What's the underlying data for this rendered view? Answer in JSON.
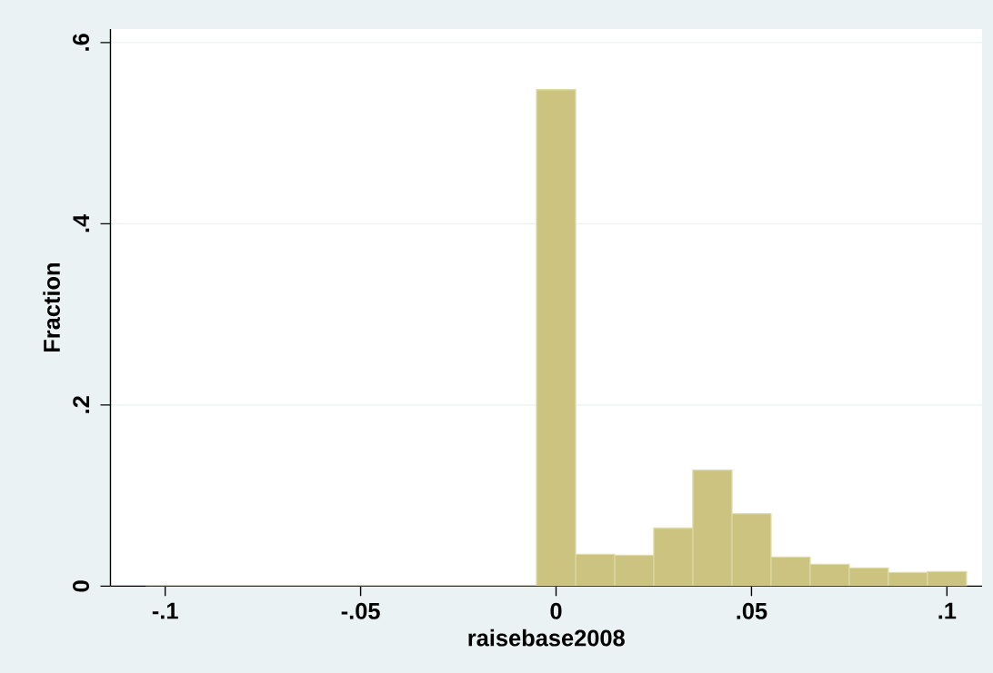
{
  "chart_data": {
    "type": "histogram",
    "xlabel": "raisebase2008",
    "ylabel": "Fraction",
    "bins": [
      -0.105,
      -0.095,
      -0.085,
      -0.075,
      -0.065,
      -0.055,
      -0.045,
      -0.035,
      -0.025,
      -0.015,
      -0.005,
      0.005,
      0.015,
      0.025,
      0.035,
      0.045,
      0.055,
      0.065,
      0.075,
      0.085,
      0.095,
      0.105
    ],
    "values": [
      0,
      0,
      0,
      0,
      0,
      0,
      0,
      0,
      0,
      0,
      0.548,
      0.035,
      0.034,
      0.064,
      0.128,
      0.08,
      0.032,
      0.024,
      0.02,
      0.015,
      0.016
    ],
    "color": "#cbc37f",
    "xlim": [
      -0.114,
      0.109
    ],
    "ylim": [
      0,
      0.615
    ],
    "xticks": [
      {
        "value": -0.1,
        "label": "-.1"
      },
      {
        "value": -0.05,
        "label": "-.05"
      },
      0,
      {
        "value": 0.05,
        "label": ".05"
      },
      {
        "value": 0.1,
        "label": ".1"
      }
    ],
    "yticks": [
      0,
      {
        "value": 0.2,
        "label": ".2"
      },
      {
        "value": 0.4,
        "label": ".4"
      },
      {
        "value": 0.6,
        "label": ".6"
      }
    ],
    "grid": "y"
  }
}
